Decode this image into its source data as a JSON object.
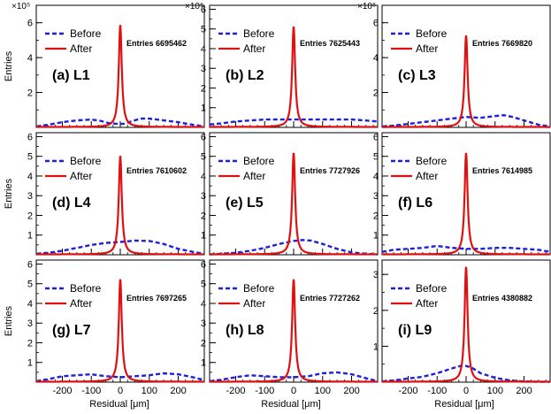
{
  "figure": {
    "xlabel": "Residual [μm]",
    "ylabel": "Entries",
    "exponent_label": "×10⁵",
    "legend": {
      "before": "Before",
      "after": "After"
    },
    "colors": {
      "before": "#1f1fdc",
      "after": "#e01010"
    }
  },
  "chart_data": [
    {
      "type": "line",
      "label": "(a) L1",
      "entries_text": "Entries 6695462",
      "xlim": [
        -290,
        290
      ],
      "ylim": [
        0,
        7
      ],
      "yticks": [
        2,
        4,
        6
      ],
      "yscale_label": "×10⁵",
      "xticks": [
        -200,
        -100,
        0,
        100,
        200
      ],
      "show_xticks": false,
      "series": [
        {
          "name": "Before",
          "style": "dashed",
          "x": [
            -290,
            -250,
            -200,
            -150,
            -100,
            -70,
            -40,
            -10,
            10,
            40,
            70,
            100,
            150,
            200,
            250,
            290
          ],
          "y": [
            0.05,
            0.15,
            0.3,
            0.4,
            0.45,
            0.38,
            0.25,
            0.2,
            0.2,
            0.35,
            0.5,
            0.5,
            0.4,
            0.3,
            0.15,
            0.05
          ]
        },
        {
          "name": "After",
          "style": "solid",
          "peak_x": 0,
          "peak_y": 5.85,
          "width": 6,
          "base": 0.02
        }
      ]
    },
    {
      "type": "line",
      "label": "(b) L2",
      "entries_text": "Entries 7625443",
      "xlim": [
        -290,
        290
      ],
      "ylim": [
        0,
        6.2
      ],
      "yticks": [
        1,
        2,
        3,
        4,
        5,
        6
      ],
      "yscale_label": "×10⁵",
      "xticks": [
        -200,
        -100,
        0,
        100,
        200
      ],
      "show_xticks": false,
      "series": [
        {
          "name": "Before",
          "style": "dashed",
          "x": [
            -290,
            -250,
            -200,
            -150,
            -100,
            -50,
            0,
            50,
            100,
            150,
            200,
            250,
            290
          ],
          "y": [
            0.15,
            0.2,
            0.3,
            0.35,
            0.4,
            0.4,
            0.4,
            0.4,
            0.4,
            0.4,
            0.4,
            0.35,
            0.3
          ]
        },
        {
          "name": "After",
          "style": "solid",
          "peak_x": 0,
          "peak_y": 5.1,
          "width": 6,
          "base": 0.02
        }
      ]
    },
    {
      "type": "line",
      "label": "(c) L3",
      "entries_text": "Entries 7669820",
      "xlim": [
        -290,
        290
      ],
      "ylim": [
        0,
        7
      ],
      "yticks": [
        2,
        4,
        6
      ],
      "yscale_label": "×10⁵",
      "xticks": [
        -200,
        -100,
        0,
        100,
        200
      ],
      "show_xticks": false,
      "series": [
        {
          "name": "Before",
          "style": "dashed",
          "x": [
            -290,
            -250,
            -200,
            -150,
            -100,
            -50,
            0,
            50,
            100,
            130,
            160,
            200,
            250,
            290
          ],
          "y": [
            0.05,
            0.1,
            0.2,
            0.3,
            0.4,
            0.5,
            0.6,
            0.55,
            0.65,
            0.7,
            0.6,
            0.4,
            0.15,
            0.05
          ]
        },
        {
          "name": "After",
          "style": "solid",
          "peak_x": 0,
          "peak_y": 5.25,
          "width": 6,
          "base": 0.02
        }
      ]
    },
    {
      "type": "line",
      "label": "(d) L4",
      "entries_text": "Entries 7610602",
      "xlim": [
        -290,
        290
      ],
      "ylim": [
        0,
        6.2
      ],
      "yticks": [
        1,
        2,
        3,
        4,
        5,
        6
      ],
      "yscale_label": "",
      "xticks": [
        -200,
        -100,
        0,
        100,
        200
      ],
      "show_xticks": false,
      "series": [
        {
          "name": "Before",
          "style": "dashed",
          "x": [
            -290,
            -250,
            -200,
            -150,
            -100,
            -50,
            0,
            50,
            100,
            150,
            200,
            250,
            290
          ],
          "y": [
            0.05,
            0.1,
            0.2,
            0.35,
            0.5,
            0.6,
            0.65,
            0.72,
            0.7,
            0.55,
            0.3,
            0.15,
            0.05
          ]
        },
        {
          "name": "After",
          "style": "solid",
          "peak_x": 0,
          "peak_y": 5.0,
          "width": 6,
          "base": 0.02
        }
      ]
    },
    {
      "type": "line",
      "label": "(e) L5",
      "entries_text": "Entries 7727926",
      "xlim": [
        -290,
        290
      ],
      "ylim": [
        0,
        6.2
      ],
      "yticks": [
        1,
        2,
        3,
        4,
        5,
        6
      ],
      "yscale_label": "",
      "xticks": [
        -200,
        -100,
        0,
        100,
        200
      ],
      "show_xticks": false,
      "series": [
        {
          "name": "Before",
          "style": "dashed",
          "x": [
            -290,
            -250,
            -200,
            -150,
            -100,
            -50,
            0,
            30,
            60,
            100,
            150,
            200,
            250,
            290
          ],
          "y": [
            0.02,
            0.05,
            0.1,
            0.2,
            0.35,
            0.55,
            0.7,
            0.75,
            0.72,
            0.55,
            0.3,
            0.12,
            0.05,
            0.02
          ]
        },
        {
          "name": "After",
          "style": "solid",
          "peak_x": 0,
          "peak_y": 5.15,
          "width": 6,
          "base": 0.02
        }
      ]
    },
    {
      "type": "line",
      "label": "(f) L6",
      "entries_text": "Entries 7614985",
      "xlim": [
        -290,
        290
      ],
      "ylim": [
        0,
        6.2
      ],
      "yticks": [
        1,
        2,
        3,
        4,
        5,
        6
      ],
      "yscale_label": "",
      "xticks": [
        -200,
        -100,
        0,
        100,
        200
      ],
      "show_xticks": false,
      "series": [
        {
          "name": "Before",
          "style": "dashed",
          "x": [
            -290,
            -250,
            -200,
            -150,
            -100,
            -50,
            0,
            50,
            100,
            150,
            200,
            250,
            290
          ],
          "y": [
            0.15,
            0.25,
            0.3,
            0.35,
            0.45,
            0.35,
            0.3,
            0.3,
            0.35,
            0.35,
            0.3,
            0.25,
            0.15
          ]
        },
        {
          "name": "After",
          "style": "solid",
          "peak_x": 0,
          "peak_y": 5.15,
          "width": 6,
          "base": 0.02
        }
      ]
    },
    {
      "type": "line",
      "label": "(g) L7",
      "entries_text": "Entries 7697265",
      "xlim": [
        -290,
        290
      ],
      "ylim": [
        0,
        6.2
      ],
      "yticks": [
        1,
        2,
        3,
        4,
        5,
        6
      ],
      "yscale_label": "",
      "xticks": [
        -200,
        -100,
        0,
        100,
        200
      ],
      "show_xticks": true,
      "series": [
        {
          "name": "Before",
          "style": "dashed",
          "x": [
            -290,
            -250,
            -200,
            -150,
            -100,
            -50,
            0,
            50,
            100,
            150,
            200,
            250,
            290
          ],
          "y": [
            0.05,
            0.15,
            0.3,
            0.35,
            0.4,
            0.3,
            0.25,
            0.3,
            0.35,
            0.45,
            0.4,
            0.25,
            0.1
          ]
        },
        {
          "name": "After",
          "style": "solid",
          "peak_x": 0,
          "peak_y": 5.2,
          "width": 6,
          "base": 0.02
        }
      ]
    },
    {
      "type": "line",
      "label": "(h) L8",
      "entries_text": "Entries 7727262",
      "xlim": [
        -290,
        290
      ],
      "ylim": [
        0,
        6.2
      ],
      "yticks": [
        1,
        2,
        3,
        4,
        5,
        6
      ],
      "yscale_label": "",
      "xticks": [
        -200,
        -100,
        0,
        100,
        200
      ],
      "show_xticks": true,
      "series": [
        {
          "name": "Before",
          "style": "dashed",
          "x": [
            -290,
            -250,
            -200,
            -150,
            -100,
            -50,
            0,
            50,
            100,
            150,
            200,
            250,
            290
          ],
          "y": [
            0.05,
            0.12,
            0.25,
            0.35,
            0.3,
            0.25,
            0.25,
            0.3,
            0.45,
            0.5,
            0.4,
            0.2,
            0.05
          ]
        },
        {
          "name": "After",
          "style": "solid",
          "peak_x": 0,
          "peak_y": 5.2,
          "width": 6,
          "base": 0.02
        }
      ]
    },
    {
      "type": "line",
      "label": "(i) L9",
      "entries_text": "Entries 4380882",
      "xlim": [
        -290,
        290
      ],
      "ylim": [
        0,
        3.4
      ],
      "yticks": [
        1,
        2,
        3
      ],
      "yscale_label": "",
      "xticks": [
        -200,
        -100,
        0,
        100,
        200
      ],
      "show_xticks": true,
      "series": [
        {
          "name": "Before",
          "style": "dashed",
          "x": [
            -290,
            -250,
            -200,
            -150,
            -100,
            -50,
            -20,
            0,
            20,
            50,
            100,
            150,
            200,
            250,
            290
          ],
          "y": [
            0.02,
            0.05,
            0.1,
            0.15,
            0.25,
            0.38,
            0.45,
            0.45,
            0.4,
            0.25,
            0.12,
            0.05,
            0.02,
            0.01,
            0.01
          ]
        },
        {
          "name": "After",
          "style": "solid",
          "peak_x": 0,
          "peak_y": 3.2,
          "width": 6,
          "base": 0.01
        }
      ]
    }
  ]
}
